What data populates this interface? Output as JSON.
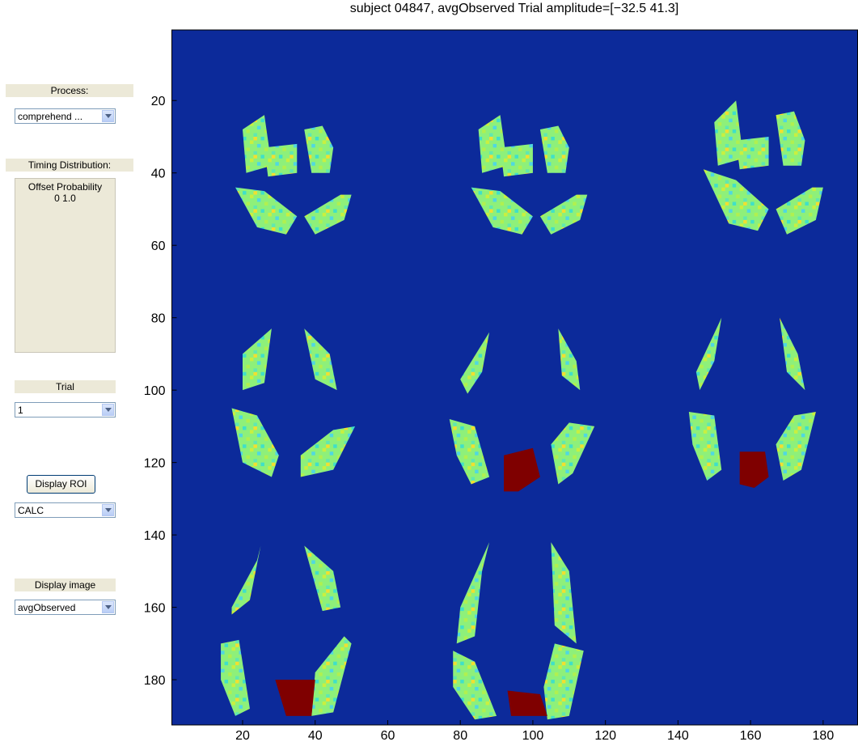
{
  "title": "subject 04847, avgObserved Trial amplitude=[−32.5 41.3]",
  "controls": {
    "process": {
      "label": "Process:",
      "value": "comprehend ..."
    },
    "timing": {
      "label": "Timing Distribution:",
      "lines": [
        "Offset Probability",
        "0 1.0"
      ]
    },
    "trial": {
      "label": "Trial",
      "value": "1"
    },
    "roi": {
      "button": "Display ROI",
      "value": "CALC"
    },
    "image": {
      "label": "Display image",
      "value": "avgObserved"
    }
  },
  "plot": {
    "xlim": [
      0.5,
      189.5
    ],
    "ylim": [
      0.5,
      192.5
    ],
    "xticks": [
      20,
      40,
      60,
      80,
      100,
      120,
      140,
      160,
      180
    ],
    "yticks": [
      20,
      40,
      60,
      80,
      100,
      120,
      140,
      160,
      180
    ]
  }
}
